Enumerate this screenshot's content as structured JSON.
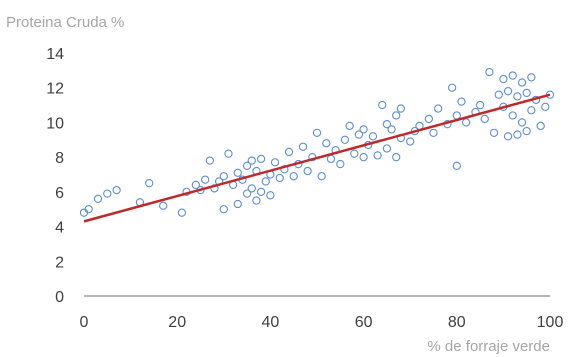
{
  "chart_data": {
    "type": "scatter",
    "ylabel": "Proteina Cruda %",
    "xlabel": "% de forraje verde",
    "xlim": [
      0,
      100
    ],
    "ylim": [
      0,
      14
    ],
    "x_ticks": [
      "0",
      "20",
      "40",
      "60",
      "80",
      "100"
    ],
    "y_ticks": [
      "0",
      "2",
      "4",
      "6",
      "8",
      "10",
      "12",
      "14"
    ],
    "grid": false,
    "legend": "none",
    "colors": {
      "points": "#5b8fd1",
      "trendline": "#c0282a",
      "axis": "#8c8c8c"
    },
    "trendline": {
      "x": [
        0,
        100
      ],
      "y": [
        4.3,
        11.6
      ]
    },
    "series": [
      {
        "x": [
          0,
          1,
          3,
          5,
          7,
          12,
          14,
          17,
          21,
          22,
          24,
          25,
          26,
          27,
          28,
          29,
          30,
          30,
          31,
          32,
          33,
          33,
          34,
          35,
          35,
          36,
          36,
          37,
          37,
          38,
          38,
          39,
          40,
          40,
          41,
          42,
          43,
          44,
          45,
          46,
          47,
          48,
          49,
          50,
          51,
          52,
          53,
          54,
          55,
          56,
          57,
          58,
          59,
          60,
          60,
          61,
          62,
          63,
          64,
          65,
          65,
          66,
          67,
          67,
          68,
          68,
          70,
          71,
          72,
          74,
          75,
          76,
          78,
          79,
          80,
          80,
          81,
          82,
          84,
          85,
          86,
          87,
          88,
          89,
          90,
          90,
          91,
          91,
          92,
          92,
          93,
          93,
          94,
          94,
          95,
          95,
          96,
          96,
          97,
          98,
          99,
          100
        ],
        "y": [
          4.8,
          5.0,
          5.6,
          5.9,
          6.1,
          5.4,
          6.5,
          5.2,
          4.8,
          6.0,
          6.4,
          6.1,
          6.7,
          7.8,
          6.2,
          6.6,
          5.0,
          6.9,
          8.2,
          6.4,
          7.1,
          5.3,
          6.7,
          7.5,
          5.9,
          6.2,
          7.8,
          5.5,
          7.2,
          6.0,
          7.9,
          6.6,
          7.0,
          5.8,
          7.7,
          6.8,
          7.3,
          8.3,
          6.9,
          7.6,
          8.6,
          7.2,
          8.0,
          9.4,
          6.9,
          8.8,
          7.9,
          8.4,
          7.6,
          9.0,
          9.8,
          8.2,
          9.3,
          8.0,
          9.6,
          8.7,
          9.2,
          8.1,
          11.0,
          9.9,
          8.5,
          9.6,
          10.4,
          8.0,
          9.1,
          10.8,
          8.9,
          9.5,
          9.8,
          10.2,
          9.4,
          10.8,
          9.9,
          12.0,
          7.5,
          10.4,
          11.2,
          10.0,
          10.6,
          11.0,
          10.2,
          12.9,
          9.4,
          11.6,
          10.9,
          12.5,
          9.2,
          11.8,
          10.4,
          12.7,
          9.3,
          11.5,
          10.0,
          12.3,
          11.7,
          9.5,
          12.6,
          10.7,
          11.3,
          9.8,
          10.9,
          11.6
        ]
      }
    ]
  }
}
